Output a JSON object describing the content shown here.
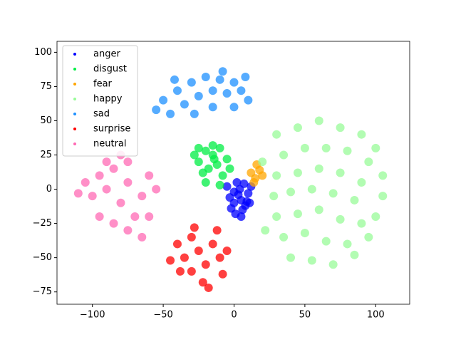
{
  "chart_data": {
    "type": "scatter",
    "xlim": [
      -125,
      124
    ],
    "ylim": [
      -84,
      108
    ],
    "xticks": [
      {
        "value": -100,
        "label": "−100"
      },
      {
        "value": -50,
        "label": "−50"
      },
      0,
      50,
      100
    ],
    "yticks": [
      {
        "value": -75,
        "label": "−75"
      },
      {
        "value": -50,
        "label": "−50"
      },
      {
        "value": -25,
        "label": "−25"
      },
      0,
      25,
      50,
      75,
      100
    ],
    "legend": "upper left",
    "series": [
      {
        "name": "anger",
        "color": "#0000ff",
        "x": [
          0,
          5,
          10,
          8,
          2,
          -3,
          12,
          6,
          -2,
          4,
          9,
          1,
          7,
          3,
          -5,
          11,
          5,
          0
        ],
        "values": [
          -2,
          -8,
          -3,
          -12,
          5,
          -6,
          2,
          -15,
          -14,
          0,
          -9,
          -18,
          4,
          -4,
          2,
          -10,
          -20,
          -10
        ]
      },
      {
        "name": "disgust",
        "color": "#00ee44",
        "x": [
          -25,
          -20,
          -15,
          -10,
          -5,
          -22,
          -18,
          -12,
          -8,
          -28,
          -15,
          -3,
          -20,
          -10,
          -25,
          -14
        ],
        "values": [
          20,
          28,
          25,
          30,
          22,
          12,
          15,
          18,
          10,
          25,
          32,
          15,
          5,
          3,
          30,
          22
        ]
      },
      {
        "name": "fear",
        "color": "#ffa500",
        "x": [
          12,
          15,
          18,
          14,
          20,
          16
        ],
        "values": [
          12,
          8,
          14,
          5,
          10,
          18
        ]
      },
      {
        "name": "happy",
        "color": "#98fb98",
        "x": [
          30,
          45,
          60,
          75,
          90,
          100,
          35,
          50,
          65,
          80,
          95,
          105,
          30,
          45,
          60,
          75,
          90,
          105,
          28,
          40,
          55,
          70,
          85,
          100,
          30,
          45,
          60,
          75,
          90,
          35,
          50,
          65,
          80,
          95,
          40,
          55,
          70,
          85,
          20,
          22
        ],
        "values": [
          40,
          45,
          50,
          45,
          40,
          30,
          25,
          30,
          30,
          28,
          20,
          10,
          10,
          12,
          15,
          12,
          5,
          -5,
          -5,
          -2,
          0,
          -3,
          -8,
          -20,
          -20,
          -18,
          -15,
          -22,
          -25,
          -35,
          -32,
          -38,
          -40,
          -35,
          -50,
          -52,
          -55,
          -48,
          20,
          -30
        ]
      },
      {
        "name": "sad",
        "color": "#1e90ff",
        "x": [
          -50,
          -45,
          -40,
          -35,
          -30,
          -25,
          -20,
          -15,
          -10,
          -5,
          0,
          5,
          10,
          -28,
          -15,
          0,
          -42,
          -8,
          -55,
          8
        ],
        "values": [
          65,
          55,
          72,
          62,
          78,
          68,
          82,
          72,
          80,
          70,
          78,
          72,
          65,
          55,
          60,
          60,
          80,
          86,
          58,
          82
        ]
      },
      {
        "name": "surprise",
        "color": "#ff0000",
        "x": [
          -40,
          -35,
          -30,
          -25,
          -20,
          -15,
          -10,
          -30,
          -22,
          -12,
          -38,
          -5,
          -28,
          -18,
          -45,
          -8
        ],
        "values": [
          -40,
          -50,
          -35,
          -45,
          -55,
          -40,
          -50,
          -60,
          -68,
          -30,
          -60,
          -45,
          -28,
          -72,
          -52,
          -62
        ]
      },
      {
        "name": "neutral",
        "color": "#ff69b4",
        "x": [
          -105,
          -100,
          -95,
          -90,
          -85,
          -80,
          -75,
          -70,
          -65,
          -60,
          -95,
          -85,
          -75,
          -65,
          -90,
          -75,
          -60,
          -110,
          -80,
          -55
        ],
        "values": [
          5,
          -5,
          10,
          0,
          15,
          -10,
          5,
          -20,
          -5,
          10,
          -20,
          -25,
          -30,
          -35,
          20,
          20,
          -20,
          -3,
          25,
          0
        ]
      }
    ]
  }
}
